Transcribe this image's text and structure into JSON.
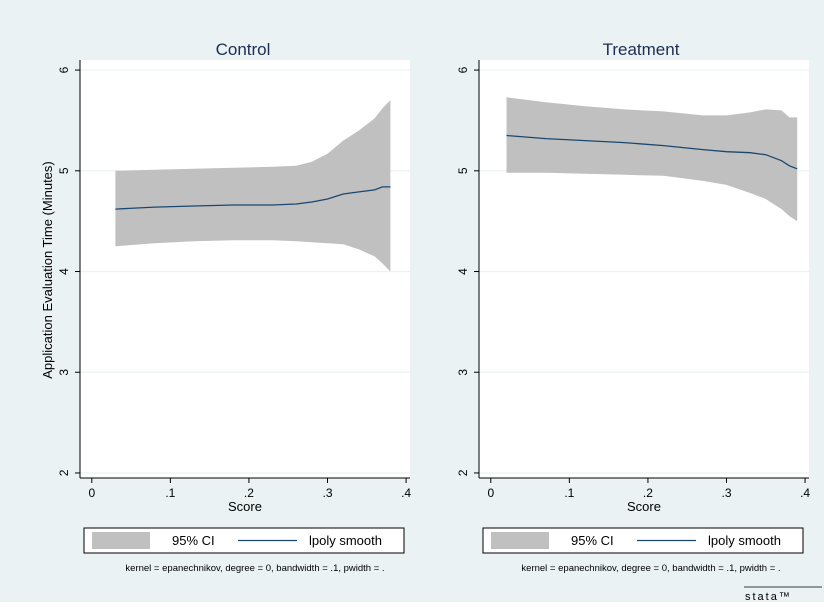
{
  "chart_data": [
    {
      "type": "area",
      "title": "Control",
      "xlabel": "Score",
      "ylabel": "Application Evaluation Time (Minutes)",
      "xlim": [
        -0.015,
        0.405
      ],
      "ylim": [
        1.95,
        6.1
      ],
      "xticks": [
        0,
        0.1,
        0.2,
        0.3,
        0.4
      ],
      "xtick_labels": [
        "0",
        ".1",
        ".2",
        ".3",
        ".4"
      ],
      "yticks": [
        2,
        3,
        4,
        5,
        6
      ],
      "ytick_labels": [
        "2",
        "3",
        "4",
        "5",
        "6"
      ],
      "grid": true,
      "legend": {
        "position": "bottom",
        "entries": [
          "95% CI",
          "lpoly smooth"
        ]
      },
      "note": "kernel = epanechnikov, degree = 0, bandwidth = .1, pwidth = .",
      "series": [
        {
          "name": "95% CI",
          "kind": "band",
          "color": "#c0c0c0",
          "x": [
            0.03,
            0.08,
            0.13,
            0.18,
            0.23,
            0.26,
            0.28,
            0.3,
            0.32,
            0.34,
            0.36,
            0.37,
            0.38
          ],
          "lower": [
            4.25,
            4.28,
            4.3,
            4.31,
            4.31,
            4.3,
            4.29,
            4.28,
            4.27,
            4.22,
            4.15,
            4.08,
            4.0
          ],
          "upper": [
            5.0,
            5.01,
            5.02,
            5.03,
            5.04,
            5.05,
            5.09,
            5.17,
            5.3,
            5.4,
            5.52,
            5.62,
            5.7
          ]
        },
        {
          "name": "lpoly smooth",
          "kind": "line",
          "color": "#1a476f",
          "x": [
            0.03,
            0.08,
            0.13,
            0.18,
            0.23,
            0.26,
            0.28,
            0.3,
            0.32,
            0.34,
            0.36,
            0.37,
            0.38
          ],
          "y": [
            4.62,
            4.64,
            4.65,
            4.66,
            4.66,
            4.67,
            4.69,
            4.72,
            4.77,
            4.79,
            4.81,
            4.84,
            4.84
          ]
        }
      ]
    },
    {
      "type": "area",
      "title": "Treatment",
      "xlabel": "Score",
      "ylabel": "",
      "xlim": [
        -0.015,
        0.405
      ],
      "ylim": [
        1.95,
        6.1
      ],
      "xticks": [
        0,
        0.1,
        0.2,
        0.3,
        0.4
      ],
      "xtick_labels": [
        "0",
        ".1",
        ".2",
        ".3",
        ".4"
      ],
      "yticks": [
        2,
        3,
        4,
        5,
        6
      ],
      "ytick_labels": [
        "2",
        "3",
        "4",
        "5",
        "6"
      ],
      "grid": true,
      "legend": {
        "position": "bottom",
        "entries": [
          "95% CI",
          "lpoly smooth"
        ]
      },
      "note": "kernel = epanechnikov, degree = 0, bandwidth = .1, pwidth = .",
      "series": [
        {
          "name": "95% CI",
          "kind": "band",
          "color": "#c0c0c0",
          "x": [
            0.02,
            0.07,
            0.12,
            0.17,
            0.22,
            0.27,
            0.3,
            0.33,
            0.35,
            0.37,
            0.38,
            0.39
          ],
          "lower": [
            4.98,
            4.98,
            4.97,
            4.96,
            4.95,
            4.9,
            4.86,
            4.78,
            4.72,
            4.62,
            4.55,
            4.5
          ],
          "upper": [
            5.73,
            5.68,
            5.64,
            5.61,
            5.59,
            5.55,
            5.55,
            5.58,
            5.61,
            5.6,
            5.53,
            5.53
          ]
        },
        {
          "name": "lpoly smooth",
          "kind": "line",
          "color": "#1a476f",
          "x": [
            0.02,
            0.07,
            0.12,
            0.17,
            0.22,
            0.27,
            0.3,
            0.33,
            0.35,
            0.37,
            0.38,
            0.39
          ],
          "y": [
            5.35,
            5.32,
            5.3,
            5.28,
            5.25,
            5.21,
            5.19,
            5.18,
            5.16,
            5.1,
            5.05,
            5.02
          ]
        }
      ]
    }
  ],
  "colors": {
    "outer_background": "#eaf2f3",
    "plot_background": "#ffffff",
    "band": "#c0c0c0",
    "line": "#1a476f",
    "grid": "#eaf2f3",
    "axis": "#000000",
    "title_text": "#1e2d53"
  },
  "footer": {
    "logo_text": "stata™"
  }
}
